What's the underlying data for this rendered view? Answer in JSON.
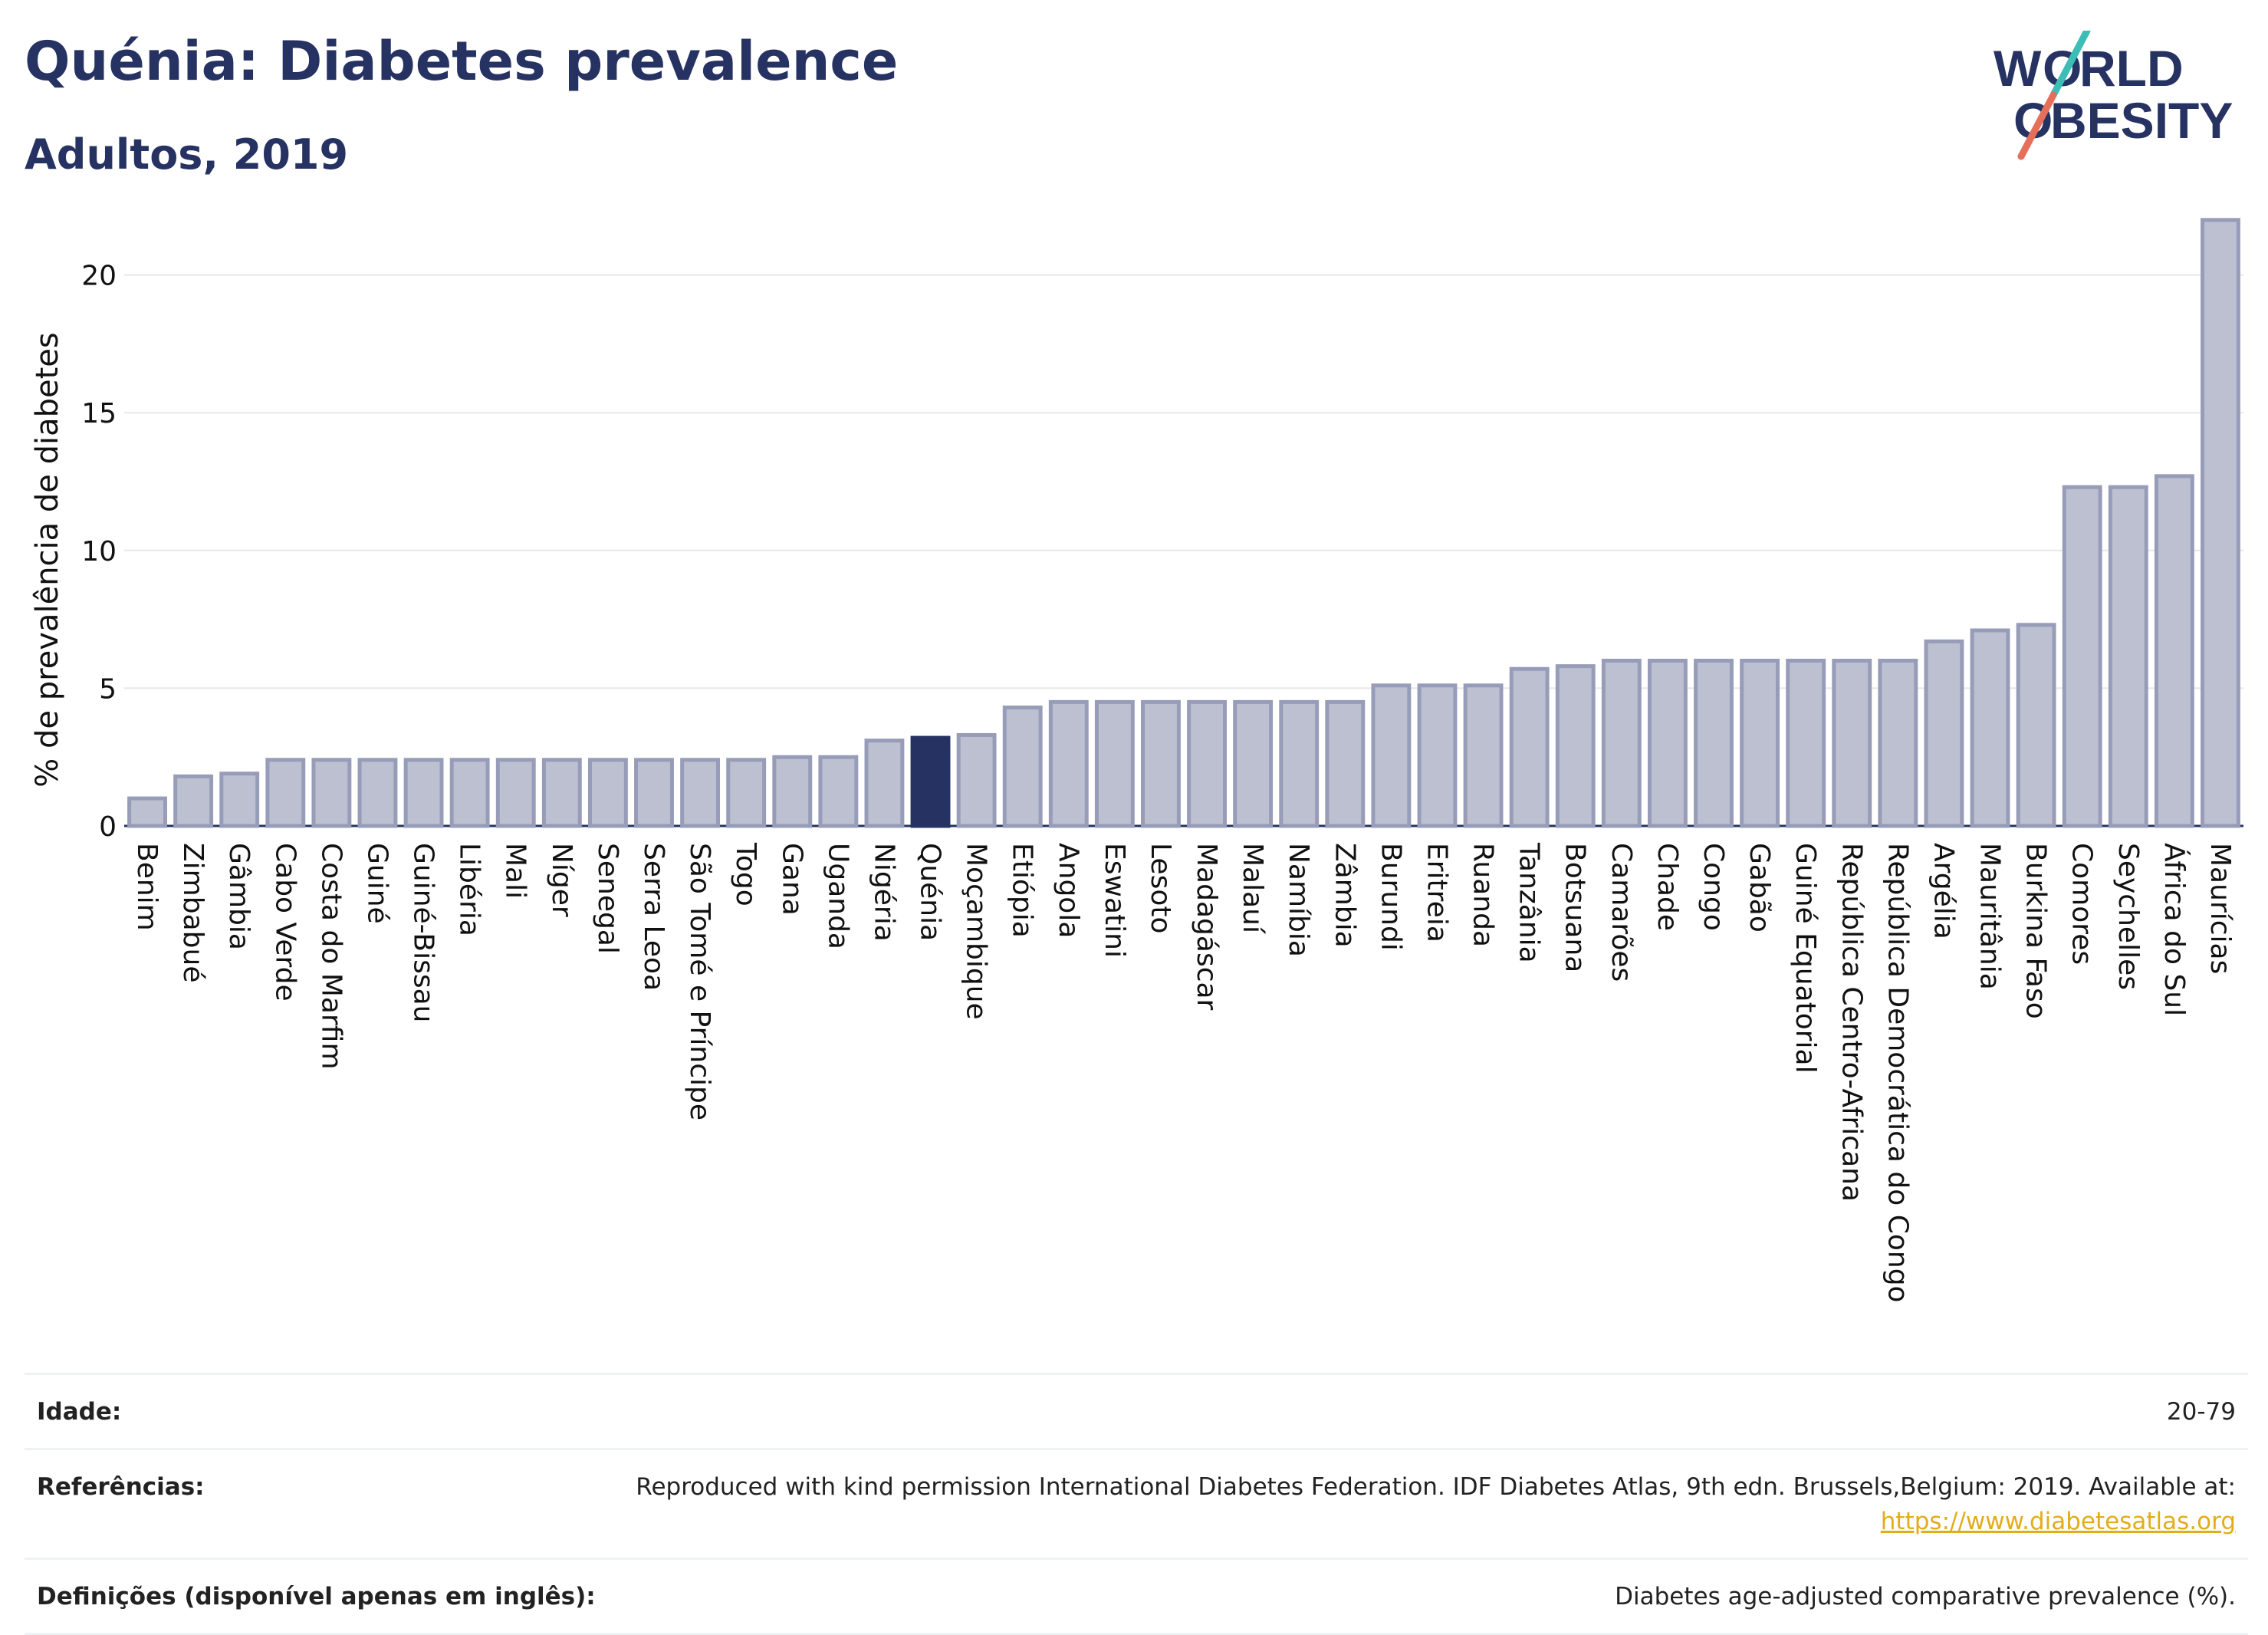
{
  "header": {
    "title": "Quénia: Diabetes prevalence",
    "subtitle": "Adultos, 2019",
    "logo_text": "WORLD OBESITY"
  },
  "colors": {
    "title": "#263262",
    "bar": "#bcc0d0",
    "bar_border": "#979cb8",
    "highlight": "#263262",
    "grid": "#e8e8e8",
    "axis": "#263262",
    "logo_teal": "#3cbdb5",
    "logo_coral": "#e66f5a",
    "link": "#e2ac1c"
  },
  "chart_data": {
    "type": "bar",
    "title": "Quénia: Diabetes prevalence",
    "subtitle": "Adultos, 2019",
    "xlabel": "",
    "ylabel": "% de prevalência de diabetes",
    "ylim": [
      0,
      22
    ],
    "yticks": [
      0,
      5,
      10,
      15,
      20
    ],
    "grid": true,
    "highlight": "Quénia",
    "categories": [
      "Benim",
      "Zimbabué",
      "Gâmbia",
      "Cabo Verde",
      "Costa do Marfim",
      "Guiné",
      "Guiné-Bissau",
      "Libéria",
      "Mali",
      "Níger",
      "Senegal",
      "Serra Leoa",
      "São Tomé e Príncipe",
      "Togo",
      "Gana",
      "Uganda",
      "Nigéria",
      "Quénia",
      "Moçambique",
      "Etiópia",
      "Angola",
      "Eswatini",
      "Lesoto",
      "Madagáscar",
      "Malauí",
      "Namíbia",
      "Zâmbia",
      "Burundi",
      "Eritreia",
      "Ruanda",
      "Tanzânia",
      "Botsuana",
      "Camarões",
      "Chade",
      "Congo",
      "Gabão",
      "Guiné Equatorial",
      "República Centro-Africana",
      "República Democrática do Congo",
      "Argélia",
      "Mauritânia",
      "Burkina Faso",
      "Comores",
      "Seychelles",
      "África do Sul",
      "Maurícias"
    ],
    "values": [
      1.0,
      1.8,
      1.9,
      2.4,
      2.4,
      2.4,
      2.4,
      2.4,
      2.4,
      2.4,
      2.4,
      2.4,
      2.4,
      2.4,
      2.5,
      2.5,
      3.1,
      3.2,
      3.3,
      4.3,
      4.5,
      4.5,
      4.5,
      4.5,
      4.5,
      4.5,
      4.5,
      5.1,
      5.1,
      5.1,
      5.7,
      5.8,
      6.0,
      6.0,
      6.0,
      6.0,
      6.0,
      6.0,
      6.0,
      6.7,
      7.1,
      7.3,
      12.3,
      12.3,
      12.7,
      22.0
    ]
  },
  "info": {
    "rows": [
      {
        "label": "Idade:",
        "value": "20-79"
      },
      {
        "label": "Referências:",
        "value": "Reproduced with kind permission International Diabetes Federation. IDF Diabetes Atlas, 9th edn. Brussels,Belgium: 2019. Available at:",
        "link": "https://www.diabetesatlas.org"
      },
      {
        "label": "Definições (disponível apenas em inglês):",
        "value": "Diabetes age-adjusted comparative prevalence (%)."
      }
    ]
  }
}
